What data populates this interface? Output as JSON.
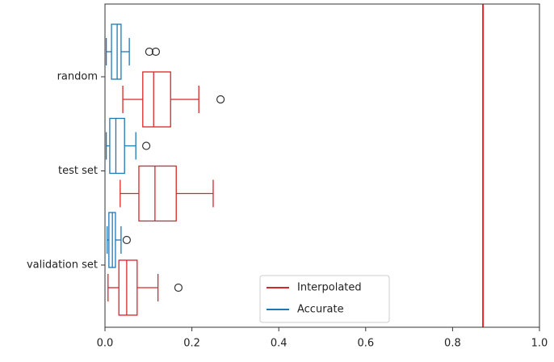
{
  "chart_data": {
    "type": "boxplot",
    "orientation": "horizontal",
    "categories": [
      "random",
      "test set",
      "validation set"
    ],
    "series": [
      {
        "name": "Interpolated",
        "color": "#d62728",
        "boxes": [
          {
            "min": 0.041,
            "q1": 0.087,
            "median": 0.112,
            "q3": 0.151,
            "max": 0.216,
            "outliers": [
              0.266
            ]
          },
          {
            "min": 0.035,
            "q1": 0.078,
            "median": 0.115,
            "q3": 0.164,
            "max": 0.249,
            "outliers": []
          },
          {
            "min": 0.007,
            "q1": 0.032,
            "median": 0.05,
            "q3": 0.074,
            "max": 0.122,
            "outliers": [
              0.169
            ]
          }
        ]
      },
      {
        "name": "Accurate",
        "color": "#1f77b4",
        "boxes": [
          {
            "min": 0.003,
            "q1": 0.015,
            "median": 0.028,
            "q3": 0.037,
            "max": 0.056,
            "outliers": [
              0.102,
              0.117
            ]
          },
          {
            "min": 0.003,
            "q1": 0.011,
            "median": 0.025,
            "q3": 0.045,
            "max": 0.071,
            "outliers": [
              0.095
            ]
          },
          {
            "min": 0.005,
            "q1": 0.009,
            "median": 0.017,
            "q3": 0.024,
            "max": 0.037,
            "outliers": [
              0.05
            ]
          }
        ]
      }
    ],
    "reference_line": {
      "value": 0.87,
      "color": "#e8262a"
    },
    "xlim": [
      0,
      1
    ],
    "xticks": [
      {
        "value": 0,
        "label": "0.0"
      },
      0.2,
      0.4,
      0.6,
      0.8,
      {
        "value": 1,
        "label": "1.0"
      }
    ],
    "legend": "lower center"
  }
}
